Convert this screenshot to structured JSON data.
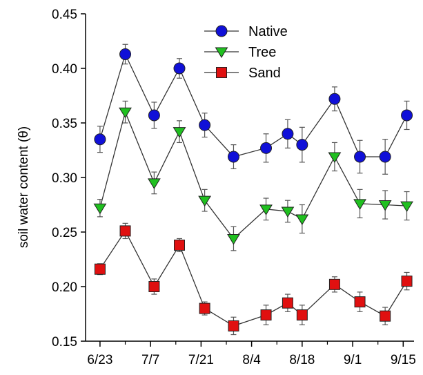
{
  "chart_data": {
    "type": "line",
    "ylabel": "soil water content (θ)",
    "ylim": [
      0.15,
      0.45
    ],
    "yticks": [
      0.15,
      0.2,
      0.25,
      0.3,
      0.35,
      0.4,
      0.45
    ],
    "ytick_labels": [
      "0.15",
      "0.20",
      "0.25",
      "0.30",
      "0.35",
      "0.40",
      "0.45"
    ],
    "xlim": [
      "2008-06-19",
      "2008-09-18"
    ],
    "xticks": [
      "2008-06-23",
      "2008-07-07",
      "2008-07-21",
      "2008-08-04",
      "2008-08-18",
      "2008-09-01",
      "2008-09-15"
    ],
    "xtick_labels": [
      "6/23",
      "7/7",
      "7/21",
      "8/4",
      "8/18",
      "9/1",
      "9/15"
    ],
    "grid": false,
    "legend_position": "top-center",
    "series": [
      {
        "name": "Native",
        "marker": "circle",
        "color": "#1010d8",
        "points": [
          {
            "x": "2008-06-23",
            "y": 0.335,
            "err": 0.012
          },
          {
            "x": "2008-06-30",
            "y": 0.413,
            "err": 0.009
          },
          {
            "x": "2008-07-08",
            "y": 0.357,
            "err": 0.012
          },
          {
            "x": "2008-07-15",
            "y": 0.4,
            "err": 0.009
          },
          {
            "x": "2008-07-22",
            "y": 0.348,
            "err": 0.011
          },
          {
            "x": "2008-07-30",
            "y": 0.319,
            "err": 0.011
          },
          {
            "x": "2008-08-08",
            "y": 0.327,
            "err": 0.013
          },
          {
            "x": "2008-08-14",
            "y": 0.34,
            "err": 0.013
          },
          {
            "x": "2008-08-18",
            "y": 0.33,
            "err": 0.016
          },
          {
            "x": "2008-08-27",
            "y": 0.372,
            "err": 0.011
          },
          {
            "x": "2008-09-03",
            "y": 0.319,
            "err": 0.015
          },
          {
            "x": "2008-09-10",
            "y": 0.319,
            "err": 0.016
          },
          {
            "x": "2008-09-16",
            "y": 0.357,
            "err": 0.013
          }
        ]
      },
      {
        "name": "Tree",
        "marker": "triangle-down",
        "color": "#20c020",
        "points": [
          {
            "x": "2008-06-23",
            "y": 0.272,
            "err": 0.008
          },
          {
            "x": "2008-06-30",
            "y": 0.36,
            "err": 0.01
          },
          {
            "x": "2008-07-08",
            "y": 0.295,
            "err": 0.01
          },
          {
            "x": "2008-07-15",
            "y": 0.342,
            "err": 0.01
          },
          {
            "x": "2008-07-22",
            "y": 0.279,
            "err": 0.01
          },
          {
            "x": "2008-07-30",
            "y": 0.244,
            "err": 0.011
          },
          {
            "x": "2008-08-08",
            "y": 0.271,
            "err": 0.01
          },
          {
            "x": "2008-08-14",
            "y": 0.269,
            "err": 0.01
          },
          {
            "x": "2008-08-18",
            "y": 0.262,
            "err": 0.013
          },
          {
            "x": "2008-08-27",
            "y": 0.319,
            "err": 0.013
          },
          {
            "x": "2008-09-03",
            "y": 0.276,
            "err": 0.013
          },
          {
            "x": "2008-09-10",
            "y": 0.275,
            "err": 0.013
          },
          {
            "x": "2008-09-16",
            "y": 0.274,
            "err": 0.013
          }
        ]
      },
      {
        "name": "Sand",
        "marker": "square",
        "color": "#e01010",
        "points": [
          {
            "x": "2008-06-23",
            "y": 0.216,
            "err": 0.005
          },
          {
            "x": "2008-06-30",
            "y": 0.251,
            "err": 0.007
          },
          {
            "x": "2008-07-08",
            "y": 0.2,
            "err": 0.007
          },
          {
            "x": "2008-07-15",
            "y": 0.238,
            "err": 0.006
          },
          {
            "x": "2008-07-22",
            "y": 0.18,
            "err": 0.006
          },
          {
            "x": "2008-07-30",
            "y": 0.164,
            "err": 0.008
          },
          {
            "x": "2008-08-08",
            "y": 0.174,
            "err": 0.009
          },
          {
            "x": "2008-08-14",
            "y": 0.185,
            "err": 0.008
          },
          {
            "x": "2008-08-18",
            "y": 0.174,
            "err": 0.009
          },
          {
            "x": "2008-08-27",
            "y": 0.202,
            "err": 0.007
          },
          {
            "x": "2008-09-03",
            "y": 0.186,
            "err": 0.009
          },
          {
            "x": "2008-09-10",
            "y": 0.173,
            "err": 0.008
          },
          {
            "x": "2008-09-16",
            "y": 0.205,
            "err": 0.008
          }
        ]
      }
    ]
  }
}
